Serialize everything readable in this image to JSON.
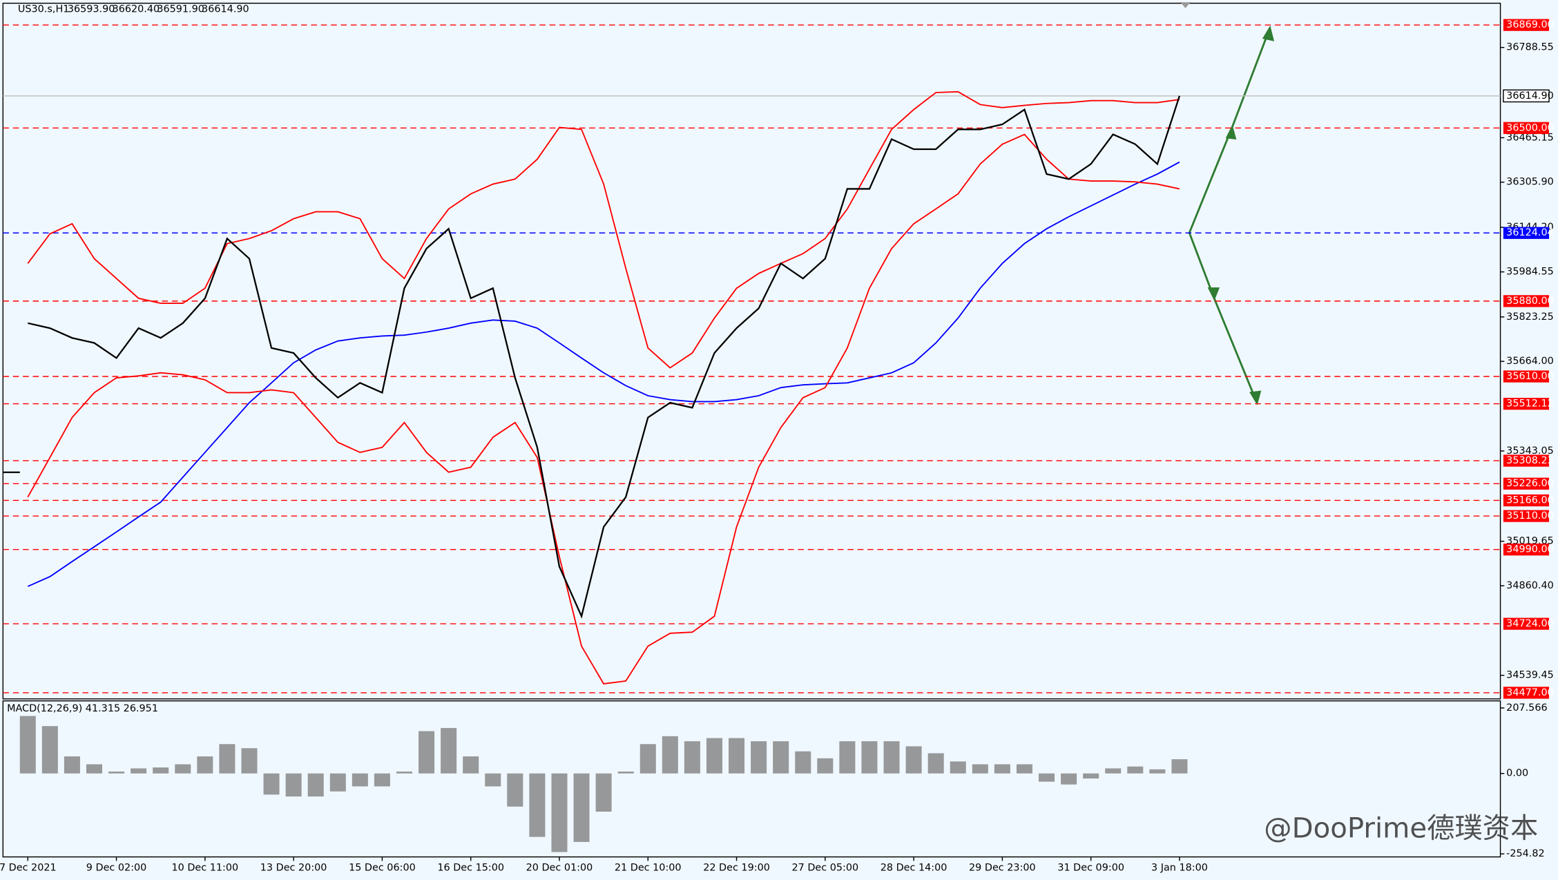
{
  "chart_data": {
    "type": "line",
    "title": "US30.s,H1",
    "quote": [
      "36593.90",
      "36620.40",
      "36591.90",
      "36614.90"
    ],
    "categories": [
      "7 Dec 2021",
      null,
      null,
      null,
      "9 Dec 02:00",
      null,
      null,
      null,
      "10 Dec 11:00",
      null,
      null,
      null,
      "13 Dec 20:00",
      null,
      null,
      null,
      "15 Dec 06:00",
      null,
      null,
      null,
      "16 Dec 15:00",
      null,
      null,
      null,
      "20 Dec 01:00",
      null,
      null,
      null,
      "21 Dec 10:00",
      null,
      null,
      null,
      "22 Dec 19:00",
      null,
      null,
      null,
      "27 Dec 05:00",
      null,
      null,
      null,
      "28 Dec 14:00",
      null,
      null,
      null,
      "29 Dec 23:00",
      null,
      null,
      null,
      "31 Dec 09:00",
      null,
      null,
      null,
      "3 Jan 18:00"
    ],
    "series": [
      {
        "color": "#000000",
        "values": [
          35801,
          35783,
          35748,
          35730,
          35676,
          35783,
          35748,
          35801,
          35890,
          36104,
          36032,
          35712,
          35694,
          35605,
          35534,
          35587,
          35552,
          35926,
          36068,
          36139,
          35890,
          35926,
          35605,
          35356,
          34929,
          34751,
          35071,
          35178,
          35463,
          35516,
          35498,
          35694,
          35783,
          35854,
          36015,
          35961,
          36032,
          36282,
          36282,
          36460,
          36424,
          36424,
          36495,
          36495,
          36513,
          36566,
          36335,
          36317,
          36371,
          36477,
          36442,
          36371,
          36614.9
        ]
      },
      {
        "color": "#ff0000",
        "values": [
          36015,
          36121,
          36157,
          36032,
          35961,
          35890,
          35872,
          35872,
          35926,
          36086,
          36104,
          36132,
          36175,
          36200,
          36200,
          36175,
          36032,
          35961,
          36104,
          36210,
          36264,
          36299,
          36317,
          36388,
          36502,
          36495,
          36299,
          35997,
          35712,
          35641,
          35694,
          35819,
          35926,
          35979,
          36015,
          36050,
          36104,
          36210,
          36353,
          36495,
          36566,
          36627,
          36630,
          36584,
          36573,
          36581,
          36588,
          36591,
          36598,
          36598,
          36591,
          36591,
          36602
        ]
      },
      {
        "color": "#ff0000",
        "values": [
          35178,
          35320,
          35463,
          35552,
          35605,
          35612,
          35623,
          35616,
          35598,
          35552,
          35552,
          35562,
          35552,
          35463,
          35374,
          35338,
          35356,
          35445,
          35338,
          35267,
          35285,
          35392,
          35445,
          35320,
          34964,
          34644,
          34509,
          34519,
          34644,
          34690,
          34694,
          34751,
          35071,
          35285,
          35427,
          35534,
          35570,
          35712,
          35926,
          36068,
          36157,
          36210,
          36264,
          36371,
          36442,
          36477,
          36388,
          36317,
          36310,
          36310,
          36307,
          36299,
          36282
        ]
      },
      {
        "color": "#0000ff",
        "values": [
          34858,
          34893,
          34947,
          35000,
          35053,
          35107,
          35160,
          35249,
          35338,
          35427,
          35516,
          35587,
          35659,
          35705,
          35737,
          35748,
          35755,
          35758,
          35769,
          35783,
          35801,
          35812,
          35808,
          35783,
          35730,
          35676,
          35623,
          35577,
          35541,
          35527,
          35520,
          35520,
          35527,
          35541,
          35570,
          35580,
          35584,
          35587,
          35605,
          35623,
          35659,
          35730,
          35819,
          35926,
          36015,
          36086,
          36139,
          36182,
          36221,
          36260,
          36299,
          36335,
          36378
        ]
      }
    ],
    "ylim": [
      34455,
      36947
    ],
    "yticks": [
      {
        "value": 36788.55,
        "label": "36788.55"
      },
      {
        "value": 36465.15,
        "label": "36465.15"
      },
      {
        "value": 36305.9,
        "label": "36305.90"
      },
      {
        "value": 36144.2,
        "label": "36144.20"
      },
      {
        "value": 35984.55,
        "label": "35984.55"
      },
      {
        "value": 35823.25,
        "label": "35823.25"
      },
      {
        "value": 35664,
        "label": "35664.00"
      },
      {
        "value": 35343.05,
        "label": "35343.05"
      },
      {
        "value": 35019.65,
        "label": "35019.65"
      },
      {
        "value": 34860.4,
        "label": "34860.40"
      },
      {
        "value": 34539.45,
        "label": "34539.45"
      }
    ],
    "levels": [
      {
        "value": 36869,
        "label": "36869.00",
        "color": "#ff0000"
      },
      {
        "value": 36500,
        "label": "36500.00",
        "color": "#ff0000"
      },
      {
        "value": 36124.04,
        "label": "36124.04",
        "color": "#0000ff"
      },
      {
        "value": 35880,
        "label": "35880.00",
        "color": "#ff0000"
      },
      {
        "value": 35610,
        "label": "35610.00",
        "color": "#ff0000"
      },
      {
        "value": 35512.12,
        "label": "35512.12",
        "color": "#ff0000"
      },
      {
        "value": 35308.23,
        "label": "35308.23",
        "color": "#ff0000"
      },
      {
        "value": 35226,
        "label": "35226.00",
        "color": "#ff0000"
      },
      {
        "value": 35166,
        "label": "35166.00",
        "color": "#ff0000"
      },
      {
        "value": 35110,
        "label": "35110.00",
        "color": "#ff0000"
      },
      {
        "value": 34990,
        "label": "34990.00",
        "color": "#ff0000"
      },
      {
        "value": 34724,
        "label": "34724.00",
        "color": "#ff0000"
      },
      {
        "value": 34477,
        "label": "34477.00",
        "color": "#ff0000"
      }
    ],
    "last_price": {
      "value": 36614.9,
      "label": "36614.90"
    },
    "macd": {
      "title": "MACD(12,26,9) 41.315 26.951",
      "color": "#808080",
      "values": [
        182,
        150,
        54,
        29,
        6,
        16,
        19,
        29,
        54,
        93,
        80,
        -67,
        -73,
        -73,
        -57,
        -41,
        -41,
        6,
        134,
        144,
        54,
        -41,
        -105,
        -201,
        -249,
        -217,
        -121,
        6,
        93,
        118,
        102,
        112,
        112,
        102,
        102,
        70,
        48,
        102,
        102,
        102,
        86,
        64,
        38,
        29,
        29,
        29,
        -26,
        -35,
        -16,
        16,
        22,
        13,
        45
      ],
      "ylim": [
        -264.4,
        229.9
      ],
      "yticks": [
        207.566,
        {
          "value": 0,
          "label": "0.00"
        },
        -254.82
      ]
    },
    "watermark": "@DooPrime德璞资本"
  }
}
